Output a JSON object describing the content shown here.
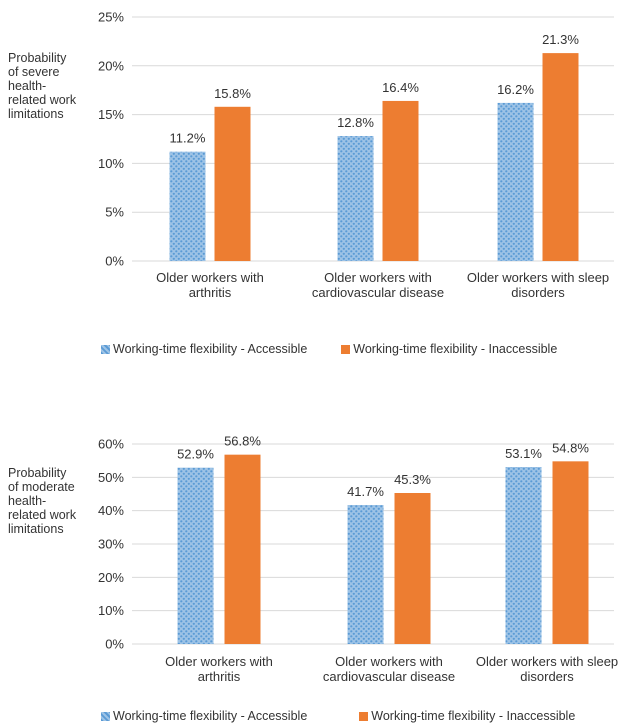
{
  "chart_data": [
    {
      "type": "bar",
      "ylabel": "Probability of severe health-related work limitations",
      "categories": [
        [
          "Older workers with",
          "arthritis"
        ],
        [
          "Older workers with",
          "cardiovascular disease"
        ],
        [
          "Older workers with sleep",
          "disorders"
        ]
      ],
      "series": [
        {
          "name": "Working-time flexibility - Accessible",
          "values": [
            11.2,
            12.8,
            16.2
          ],
          "labels": [
            "11.2%",
            "12.8%",
            "16.2%"
          ],
          "color": "#5b9bd5",
          "pattern": "dotted"
        },
        {
          "name": "Working-time flexibility - Inaccessible",
          "values": [
            15.8,
            16.4,
            21.3
          ],
          "labels": [
            "15.8%",
            "16.4%",
            "21.3%"
          ],
          "color": "#ed7d31",
          "pattern": "solid"
        }
      ],
      "ylim": [
        0,
        25
      ],
      "yticks": [
        "0%",
        "5%",
        "10%",
        "15%",
        "20%",
        "25%"
      ],
      "grid": true,
      "legend": "bottom"
    },
    {
      "type": "bar",
      "ylabel": "Probability of moderate health-related work limitations",
      "categories": [
        [
          "Older workers with",
          "arthritis"
        ],
        [
          "Older workers with",
          "cardiovascular disease"
        ],
        [
          "Older workers with sleep",
          "disorders"
        ]
      ],
      "series": [
        {
          "name": "Working-time flexibility - Accessible",
          "values": [
            52.9,
            41.7,
            53.1
          ],
          "labels": [
            "52.9%",
            "41.7%",
            "53.1%"
          ],
          "color": "#5b9bd5",
          "pattern": "dotted"
        },
        {
          "name": "Working-time flexibility - Inaccessible",
          "values": [
            56.8,
            45.3,
            54.8
          ],
          "labels": [
            "56.8%",
            "45.3%",
            "54.8%"
          ],
          "color": "#ed7d31",
          "pattern": "solid"
        }
      ],
      "ylim": [
        0,
        60
      ],
      "yticks": [
        "0%",
        "10%",
        "20%",
        "30%",
        "40%",
        "50%",
        "60%"
      ],
      "grid": true,
      "legend": "bottom"
    }
  ]
}
